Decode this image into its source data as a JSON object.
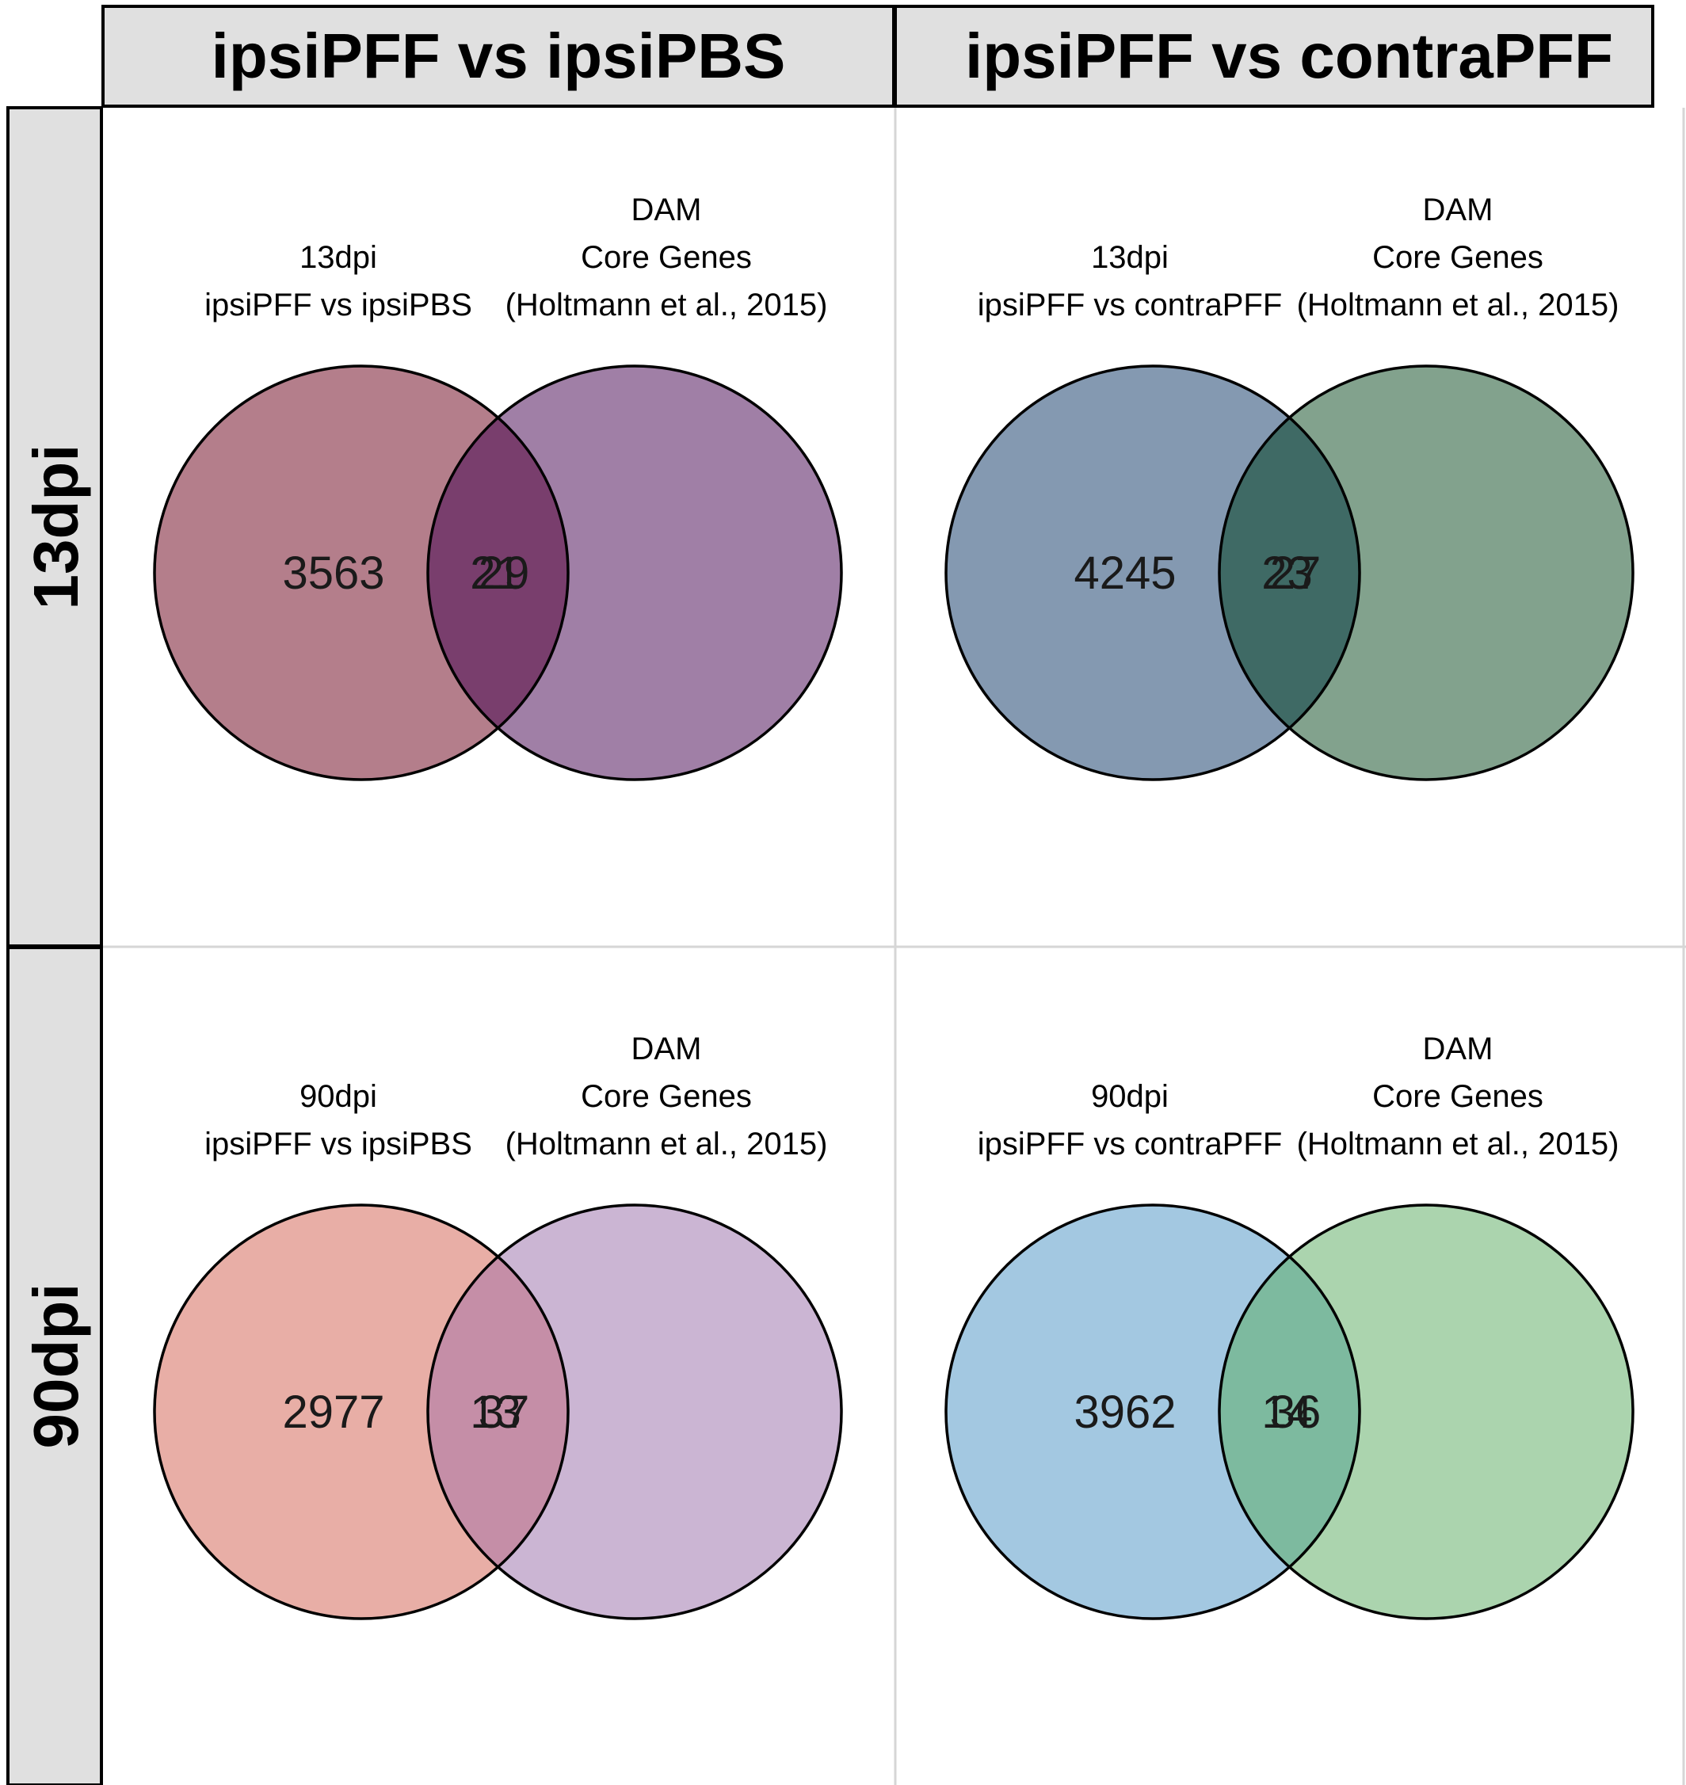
{
  "column_headers": [
    "ipsiPFF vs ipsiPBS",
    "ipsiPFF vs contraPFF"
  ],
  "row_headers": [
    "13dpi",
    "90dpi"
  ],
  "panels": [
    {
      "left_set_lines": [
        "13dpi",
        "ipsiPFF vs ipsiPBS"
      ],
      "right_set_lines": [
        "DAM",
        "Core Genes",
        "(Holtmann et al., 2015)"
      ],
      "left_only": "3563",
      "overlap": "21",
      "right_only": "29",
      "colors": {
        "left": "#b47e8b",
        "right": "#a07fa6",
        "overlap": "#793e6d"
      }
    },
    {
      "left_set_lines": [
        "13dpi",
        "ipsiPFF vs contraPFF"
      ],
      "right_set_lines": [
        "DAM",
        "Core Genes",
        "(Holtmann et al., 2015)"
      ],
      "left_only": "4245",
      "overlap": "23",
      "right_only": "27",
      "colors": {
        "left": "#8499b1",
        "right": "#82a28d",
        "overlap": "#3f6a65"
      }
    },
    {
      "left_set_lines": [
        "90dpi",
        "ipsiPFF vs ipsiPBS"
      ],
      "right_set_lines": [
        "DAM",
        "Core Genes",
        "(Holtmann et al., 2015)"
      ],
      "left_only": "2977",
      "overlap": "13",
      "right_only": "37",
      "colors": {
        "left": "#e8aea6",
        "right": "#cbb5d3",
        "overlap": "#c58ea7"
      }
    },
    {
      "left_set_lines": [
        "90dpi",
        "ipsiPFF vs contraPFF"
      ],
      "right_set_lines": [
        "DAM",
        "Core Genes",
        "(Holtmann et al., 2015)"
      ],
      "left_only": "3962",
      "overlap": "14",
      "right_only": "36",
      "colors": {
        "left": "#a3c8e1",
        "right": "#abd4ae",
        "overlap": "#7dba9f"
      }
    }
  ],
  "style": {
    "header_background": "#e0e0e0",
    "grid_line": "#d6d6d6",
    "border": "#000000"
  }
}
